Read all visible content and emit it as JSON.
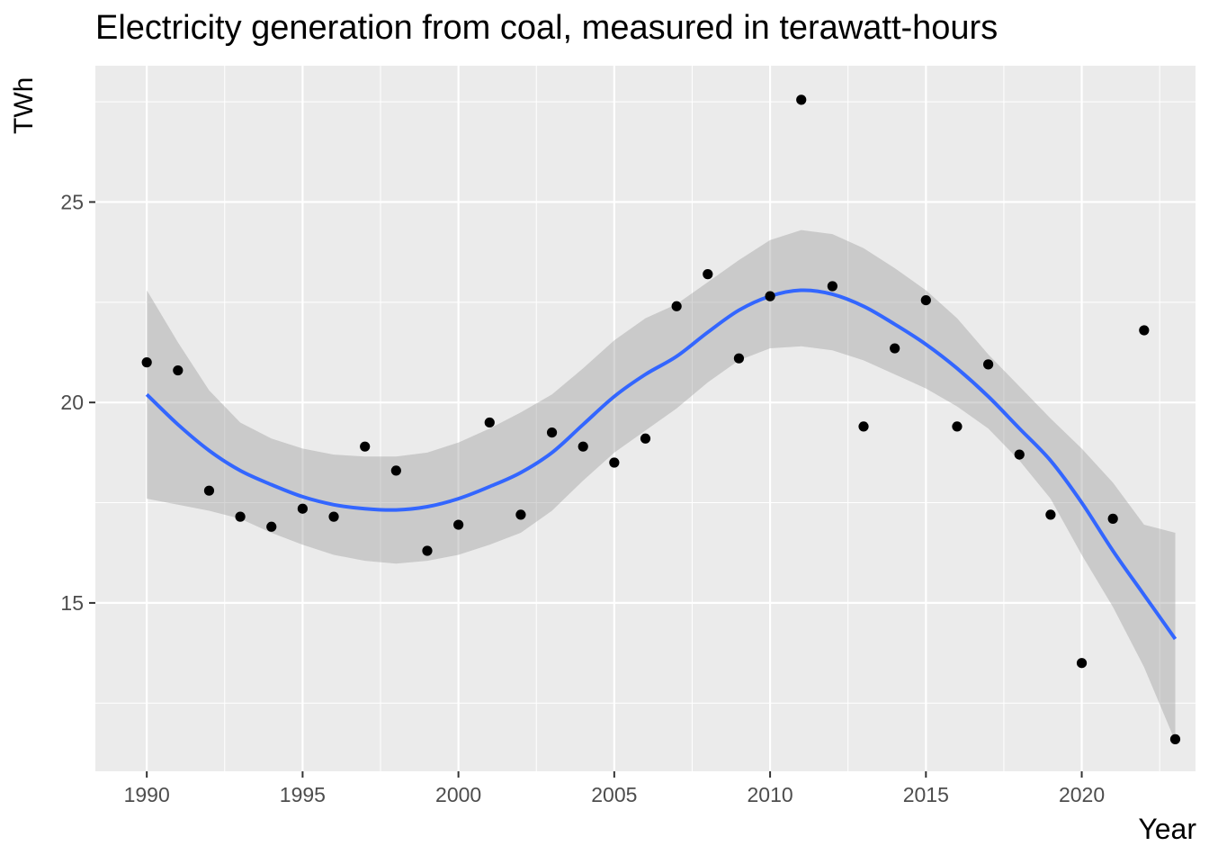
{
  "chart_data": {
    "type": "scatter",
    "title": "Electricity generation from coal, measured in terawatt-hours",
    "xlabel": "Year",
    "ylabel": "TWh",
    "xlim": [
      1988.35,
      2023.65
    ],
    "ylim": [
      10.8,
      28.4
    ],
    "x_ticks": [
      1990,
      1995,
      2000,
      2005,
      2010,
      2015,
      2020
    ],
    "x_minor_ticks": [
      1992.5,
      1997.5,
      2002.5,
      2007.5,
      2012.5,
      2017.5,
      2022.5
    ],
    "y_ticks": [
      15,
      20,
      25
    ],
    "y_minor_ticks": [
      12.5,
      17.5,
      22.5,
      27.5
    ],
    "grid": true,
    "points": {
      "x": [
        1990,
        1991,
        1992,
        1993,
        1994,
        1995,
        1996,
        1997,
        1998,
        1999,
        2000,
        2001,
        2002,
        2003,
        2004,
        2005,
        2006,
        2007,
        2008,
        2009,
        2010,
        2011,
        2012,
        2013,
        2014,
        2015,
        2016,
        2017,
        2018,
        2019,
        2020,
        2021,
        2022,
        2023
      ],
      "y": [
        21.0,
        20.8,
        17.8,
        17.15,
        16.9,
        17.35,
        17.15,
        18.9,
        18.3,
        16.3,
        16.95,
        19.5,
        17.2,
        19.25,
        18.9,
        18.5,
        19.1,
        22.4,
        23.2,
        21.1,
        22.65,
        27.55,
        22.9,
        19.4,
        21.35,
        22.55,
        19.4,
        20.95,
        18.7,
        17.2,
        13.5,
        17.1,
        21.8,
        11.6
      ]
    },
    "smooth": {
      "method": "loess",
      "x": [
        1990,
        1991,
        1992,
        1993,
        1994,
        1995,
        1996,
        1997,
        1998,
        1999,
        2000,
        2001,
        2002,
        2003,
        2004,
        2005,
        2006,
        2007,
        2008,
        2009,
        2010,
        2011,
        2012,
        2013,
        2014,
        2015,
        2016,
        2017,
        2018,
        2019,
        2020,
        2021,
        2022,
        2023
      ],
      "y": [
        20.2,
        19.45,
        18.8,
        18.3,
        17.95,
        17.65,
        17.45,
        17.35,
        17.32,
        17.4,
        17.6,
        17.9,
        18.25,
        18.75,
        19.45,
        20.15,
        20.7,
        21.15,
        21.75,
        22.3,
        22.65,
        22.8,
        22.7,
        22.4,
        21.95,
        21.45,
        20.85,
        20.15,
        19.35,
        18.55,
        17.5,
        16.3,
        15.2,
        14.1
      ],
      "ci_lower": [
        17.6,
        17.45,
        17.3,
        17.1,
        16.75,
        16.45,
        16.2,
        16.05,
        15.98,
        16.05,
        16.2,
        16.45,
        16.75,
        17.3,
        18.05,
        18.75,
        19.3,
        19.85,
        20.5,
        21.05,
        21.35,
        21.4,
        21.3,
        21.05,
        20.7,
        20.35,
        19.9,
        19.35,
        18.55,
        17.6,
        16.2,
        14.9,
        13.4,
        11.55
      ],
      "ci_upper": [
        22.8,
        21.5,
        20.3,
        19.5,
        19.1,
        18.85,
        18.7,
        18.65,
        18.65,
        18.75,
        19.0,
        19.35,
        19.75,
        20.2,
        20.85,
        21.55,
        22.1,
        22.45,
        23.0,
        23.55,
        24.05,
        24.3,
        24.2,
        23.85,
        23.35,
        22.8,
        22.1,
        21.2,
        20.4,
        19.6,
        18.85,
        18.0,
        16.95,
        16.75
      ]
    },
    "colors": {
      "panel": "#ebebeb",
      "grid": "#ffffff",
      "point": "#000000",
      "smooth_line": "#3366ff",
      "ribbon": "#999999"
    }
  }
}
